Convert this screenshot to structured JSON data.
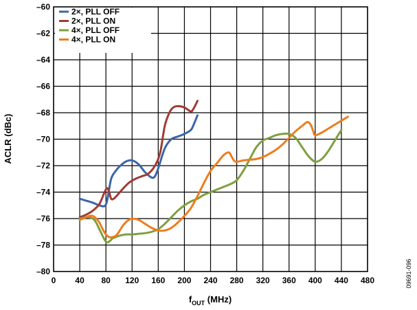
{
  "chart_data": {
    "type": "line",
    "title": "",
    "xlabel": {
      "main": "f",
      "sub": "OUT",
      "rest": " (MHz)"
    },
    "ylabel": "ACLR (dBc)",
    "xlim": [
      0,
      480
    ],
    "ylim": [
      -80,
      -60
    ],
    "xticks": [
      0,
      40,
      80,
      120,
      160,
      200,
      240,
      280,
      320,
      360,
      400,
      440,
      480
    ],
    "yticks": [
      -80,
      -78,
      -76,
      -74,
      -72,
      -70,
      -68,
      -66,
      -64,
      -62,
      -60
    ],
    "x_tick_labels": [
      "0",
      "40",
      "80",
      "120",
      "160",
      "200",
      "240",
      "280",
      "320",
      "360",
      "400",
      "440",
      "480"
    ],
    "y_tick_labels": [
      "–80",
      "–78",
      "–76",
      "–74",
      "–72",
      "–70",
      "–68",
      "–66",
      "–64",
      "–62",
      "–60"
    ],
    "grid": true,
    "legend_position": "top-left",
    "figure_id": "09691-096",
    "series": [
      {
        "name": "2×, PLL OFF",
        "color": "#3A64A8",
        "x": [
          40,
          50,
          60,
          70,
          78,
          82,
          88,
          95,
          100,
          110,
          120,
          130,
          140,
          150,
          155,
          160,
          170,
          180,
          190,
          200,
          210,
          215,
          220
        ],
        "y": [
          -74.5,
          -74.65,
          -74.8,
          -75.0,
          -75.05,
          -74.6,
          -73.0,
          -72.4,
          -72.1,
          -71.7,
          -71.6,
          -71.9,
          -72.5,
          -72.9,
          -72.8,
          -72.2,
          -70.7,
          -70.0,
          -69.8,
          -69.6,
          -69.3,
          -68.8,
          -68.2
        ]
      },
      {
        "name": "2×, PLL ON",
        "color": "#A03A36",
        "x": [
          40,
          50,
          60,
          70,
          78,
          82,
          85,
          88,
          92,
          98,
          105,
          115,
          125,
          135,
          145,
          155,
          163,
          170,
          177,
          183,
          190,
          200,
          210,
          215,
          220
        ],
        "y": [
          -75.9,
          -75.7,
          -75.4,
          -74.9,
          -74.0,
          -73.7,
          -74.0,
          -74.5,
          -74.5,
          -74.2,
          -73.8,
          -73.3,
          -73.0,
          -72.8,
          -72.6,
          -72.0,
          -71.0,
          -69.0,
          -68.0,
          -67.6,
          -67.5,
          -67.6,
          -67.9,
          -67.6,
          -67.1
        ]
      },
      {
        "name": "4×, PLL OFF",
        "color": "#7E9F3E",
        "x": [
          40,
          50,
          60,
          65,
          70,
          78,
          82,
          86,
          90,
          95,
          100,
          110,
          120,
          130,
          140,
          150,
          160,
          170,
          180,
          190,
          200,
          210,
          220,
          230,
          240,
          250,
          260,
          270,
          280,
          290,
          300,
          310,
          320,
          330,
          340,
          350,
          360,
          370,
          380,
          390,
          400,
          410,
          420,
          430,
          440
        ],
        "y": [
          -76.0,
          -75.9,
          -76.0,
          -76.3,
          -76.8,
          -77.6,
          -77.8,
          -77.7,
          -77.5,
          -77.4,
          -77.3,
          -77.2,
          -77.2,
          -77.15,
          -77.1,
          -77.0,
          -76.8,
          -76.4,
          -75.9,
          -75.4,
          -75.0,
          -74.7,
          -74.5,
          -74.2,
          -74.0,
          -73.8,
          -73.6,
          -73.4,
          -73.1,
          -72.4,
          -71.5,
          -70.6,
          -70.1,
          -69.9,
          -69.7,
          -69.6,
          -69.6,
          -69.9,
          -70.6,
          -71.3,
          -71.7,
          -71.5,
          -70.9,
          -70.1,
          -69.3
        ]
      },
      {
        "name": "4×, PLL ON",
        "color": "#EE7C1C",
        "x": [
          40,
          45,
          50,
          55,
          60,
          65,
          70,
          75,
          80,
          85,
          90,
          95,
          100,
          105,
          110,
          115,
          120,
          130,
          140,
          150,
          160,
          170,
          180,
          190,
          200,
          210,
          220,
          230,
          240,
          250,
          260,
          268,
          272,
          278,
          290,
          300,
          310,
          320,
          330,
          340,
          350,
          360,
          370,
          380,
          388,
          393,
          397,
          400,
          410,
          420,
          430,
          440,
          450
        ],
        "y": [
          -76.1,
          -76.0,
          -75.9,
          -75.8,
          -75.8,
          -76.0,
          -76.3,
          -76.8,
          -77.2,
          -77.4,
          -77.4,
          -77.3,
          -77.0,
          -76.6,
          -76.3,
          -76.1,
          -76.0,
          -76.1,
          -76.4,
          -76.7,
          -76.9,
          -76.9,
          -76.7,
          -76.3,
          -75.8,
          -75.2,
          -74.3,
          -73.3,
          -72.4,
          -71.8,
          -71.2,
          -71.0,
          -71.3,
          -71.7,
          -71.6,
          -71.55,
          -71.5,
          -71.35,
          -71.1,
          -70.8,
          -70.4,
          -69.9,
          -69.4,
          -69.0,
          -68.7,
          -68.9,
          -69.4,
          -69.7,
          -69.5,
          -69.2,
          -68.9,
          -68.6,
          -68.3
        ]
      }
    ]
  }
}
